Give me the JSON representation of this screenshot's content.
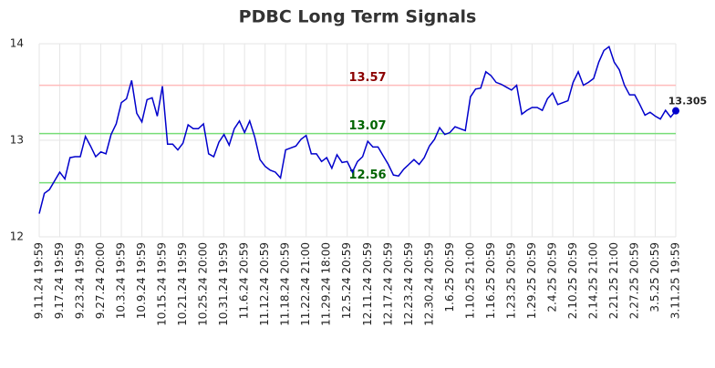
{
  "chart_data": {
    "type": "line",
    "title": "PDBC Long Term Signals",
    "categories": [
      "9.11.24 19:59",
      null,
      null,
      null,
      "9.17.24 19:59",
      null,
      null,
      null,
      "9.23.24 19:59",
      null,
      null,
      null,
      "9.27.24 20:00",
      null,
      null,
      null,
      "10.3.24 19:59",
      null,
      null,
      null,
      "10.9.24 19:59",
      null,
      null,
      null,
      "10.15.24 19:59",
      null,
      null,
      null,
      "10.21.24 19:59",
      null,
      null,
      null,
      "10.25.24 20:00",
      null,
      null,
      null,
      "10.31.24 19:59",
      null,
      null,
      null,
      "11.6.24 20:59",
      null,
      null,
      null,
      "11.12.24 20:59",
      null,
      null,
      null,
      "11.18.24 20:59",
      null,
      null,
      null,
      "11.22.24 21:00",
      null,
      null,
      null,
      "11.29.24 18:00",
      null,
      null,
      null,
      "12.5.24 20:59",
      null,
      null,
      null,
      "12.11.24 20:59",
      null,
      null,
      null,
      "12.17.24 20:59",
      null,
      null,
      null,
      "12.23.24 20:59",
      null,
      null,
      null,
      "12.30.24 20:59",
      null,
      null,
      null,
      "1.6.25 20:59",
      null,
      null,
      null,
      "1.10.25 21:00",
      null,
      null,
      null,
      "1.16.25 20:59",
      null,
      null,
      null,
      "1.23.25 20:59",
      null,
      null,
      null,
      "1.29.25 20:59",
      null,
      null,
      null,
      "2.4.25 20:59",
      null,
      null,
      null,
      "2.10.25 20:59",
      null,
      null,
      null,
      "2.14.25 21:00",
      null,
      null,
      null,
      "2.21.25 21:00",
      null,
      null,
      null,
      "2.27.25 20:59",
      null,
      null,
      null,
      "3.5.25 20:59",
      null,
      null,
      null,
      "3.11.25 19:59"
    ],
    "series": [
      {
        "name": "PDBC",
        "color": "#0000cc",
        "values": [
          12.24,
          12.45,
          12.49,
          12.58,
          12.67,
          12.6,
          12.82,
          12.83,
          12.83,
          13.04,
          12.94,
          12.83,
          12.88,
          12.86,
          13.06,
          13.17,
          13.39,
          13.43,
          13.62,
          13.28,
          13.19,
          13.42,
          13.44,
          13.25,
          13.56,
          12.96,
          12.96,
          12.9,
          12.97,
          13.16,
          13.12,
          13.12,
          13.17,
          12.86,
          12.83,
          12.98,
          13.06,
          12.95,
          13.12,
          13.2,
          13.08,
          13.2,
          13.03,
          12.8,
          12.73,
          12.69,
          12.67,
          12.61,
          12.9,
          12.92,
          12.94,
          13.01,
          13.05,
          12.86,
          12.86,
          12.78,
          12.82,
          12.71,
          12.85,
          12.77,
          12.78,
          12.67,
          12.78,
          12.83,
          12.99,
          12.93,
          12.93,
          12.84,
          12.75,
          12.64,
          12.63,
          12.7,
          12.75,
          12.8,
          12.75,
          12.82,
          12.94,
          13.01,
          13.13,
          13.06,
          13.08,
          13.14,
          13.12,
          13.1,
          13.45,
          13.53,
          13.54,
          13.71,
          13.67,
          13.6,
          13.58,
          13.55,
          13.52,
          13.57,
          13.27,
          13.31,
          13.34,
          13.34,
          13.31,
          13.43,
          13.49,
          13.37,
          13.39,
          13.41,
          13.6,
          13.71,
          13.57,
          13.6,
          13.64,
          13.81,
          13.93,
          13.97,
          13.81,
          13.73,
          13.57,
          13.47,
          13.47,
          13.37,
          13.26,
          13.29,
          13.25,
          13.22,
          13.31,
          13.24,
          13.305
        ]
      }
    ],
    "levels": [
      {
        "value": 13.57,
        "color": "#ffbbbb",
        "label_color": "#8b0000"
      },
      {
        "value": 13.07,
        "color": "#77dd77",
        "label_color": "#006400"
      },
      {
        "value": 12.56,
        "color": "#77dd77",
        "label_color": "#006400"
      }
    ],
    "ylim": [
      12,
      14
    ],
    "yticks": [
      12,
      13,
      14
    ],
    "grid": true
  }
}
